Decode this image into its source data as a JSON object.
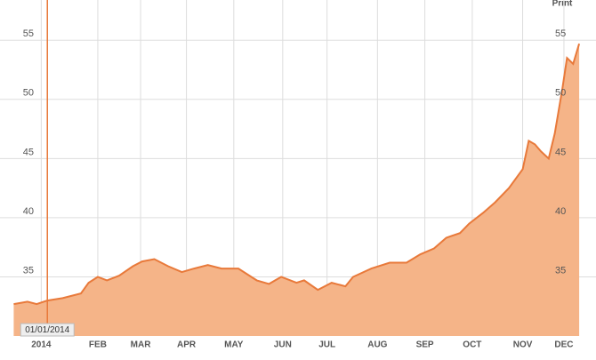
{
  "print_label": "Print",
  "chart_data": {
    "type": "area",
    "x": [
      -22,
      -13,
      -7,
      0,
      10,
      22,
      27,
      33,
      39,
      47,
      56,
      62,
      70,
      79,
      88,
      96,
      105,
      114,
      125,
      137,
      145,
      153,
      163,
      168,
      177,
      186,
      195,
      200,
      212,
      224,
      235,
      244,
      253,
      261,
      270,
      276,
      285,
      293,
      302,
      311,
      315,
      319,
      323,
      328,
      332,
      337,
      340,
      344,
      348
    ],
    "values": [
      32.7,
      32.9,
      32.7,
      33.0,
      33.2,
      33.6,
      34.5,
      35.0,
      34.7,
      35.1,
      35.9,
      36.3,
      36.5,
      35.9,
      35.4,
      35.7,
      36.0,
      35.7,
      35.7,
      34.7,
      34.4,
      35.0,
      34.5,
      34.7,
      33.9,
      34.5,
      34.2,
      35.0,
      35.7,
      36.2,
      36.2,
      36.9,
      37.4,
      38.3,
      38.7,
      39.5,
      40.4,
      41.3,
      42.5,
      44.1,
      46.5,
      46.2,
      45.6,
      45.0,
      47.1,
      50.9,
      53.5,
      53.0,
      54.7
    ],
    "color": "#e8793a",
    "fill": "#f5b488",
    "xlim": [
      -24,
      352
    ],
    "xticks": [
      {
        "value": -4,
        "label": "2014"
      },
      {
        "value": 33,
        "label": "FEB"
      },
      {
        "value": 61,
        "label": "MAR"
      },
      {
        "value": 91,
        "label": "APR"
      },
      {
        "value": 122,
        "label": "MAY"
      },
      {
        "value": 154,
        "label": "JUN"
      },
      {
        "value": 183,
        "label": "JUL"
      },
      {
        "value": 216,
        "label": "AUG"
      },
      {
        "value": 247,
        "label": "SEP"
      },
      {
        "value": 278,
        "label": "OCT"
      },
      {
        "value": 311,
        "label": "NOV"
      },
      {
        "value": 338,
        "label": "DEC"
      }
    ],
    "ylim": [
      30,
      58.4
    ],
    "yticks": [
      35,
      40,
      45,
      50,
      55
    ],
    "grid": true,
    "marker": {
      "x": 0,
      "label": "01/01/2014"
    }
  }
}
